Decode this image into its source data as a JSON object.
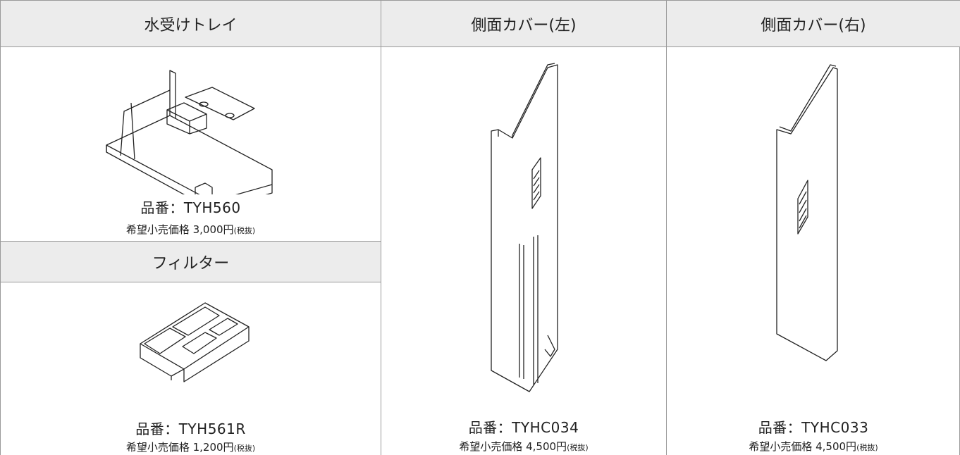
{
  "products": [
    {
      "name": "水受けトレイ",
      "part_number": "品番：TYH560",
      "price": "希望小売価格 3,000円",
      "tax_note": "(税抜)"
    },
    {
      "name": "フィルター",
      "part_number": "品番：TYH561R",
      "price": "希望小売価格 1,200円",
      "tax_note": "(税抜)"
    },
    {
      "name": "側面カバー(左)",
      "part_number": "品番：TYHC034",
      "price": "希望小売価格 4,500円",
      "tax_note": "(税抜)"
    },
    {
      "name": "側面カバー(右)",
      "part_number": "品番：TYHC033",
      "price": "希望小売価格 4,500円",
      "tax_note": "(税抜)"
    }
  ]
}
